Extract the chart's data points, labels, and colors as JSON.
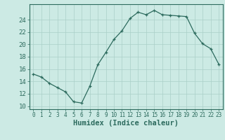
{
  "x": [
    0,
    1,
    2,
    3,
    4,
    5,
    6,
    7,
    8,
    9,
    10,
    11,
    12,
    13,
    14,
    15,
    16,
    17,
    18,
    19,
    20,
    21,
    22,
    23
  ],
  "y": [
    15.2,
    14.7,
    13.7,
    13.0,
    12.3,
    10.7,
    10.5,
    13.2,
    16.7,
    18.7,
    20.8,
    22.2,
    24.2,
    25.2,
    24.8,
    25.5,
    24.8,
    24.7,
    24.6,
    24.5,
    21.8,
    20.1,
    19.3,
    16.8
  ],
  "xlabel": "Humidex (Indice chaleur)",
  "line_color": "#2d6b5e",
  "bg_color": "#cceae4",
  "grid_color": "#aacfc8",
  "text_color": "#2d6b5e",
  "ylim": [
    9.5,
    26.5
  ],
  "xlim": [
    -0.5,
    23.5
  ],
  "yticks": [
    10,
    12,
    14,
    16,
    18,
    20,
    22,
    24
  ],
  "xticks": [
    0,
    1,
    2,
    3,
    4,
    5,
    6,
    7,
    8,
    9,
    10,
    11,
    12,
    13,
    14,
    15,
    16,
    17,
    18,
    19,
    20,
    21,
    22,
    23
  ],
  "xlabel_fontsize": 7.5,
  "tick_fontsize": 5.5,
  "ytick_fontsize": 6.5
}
